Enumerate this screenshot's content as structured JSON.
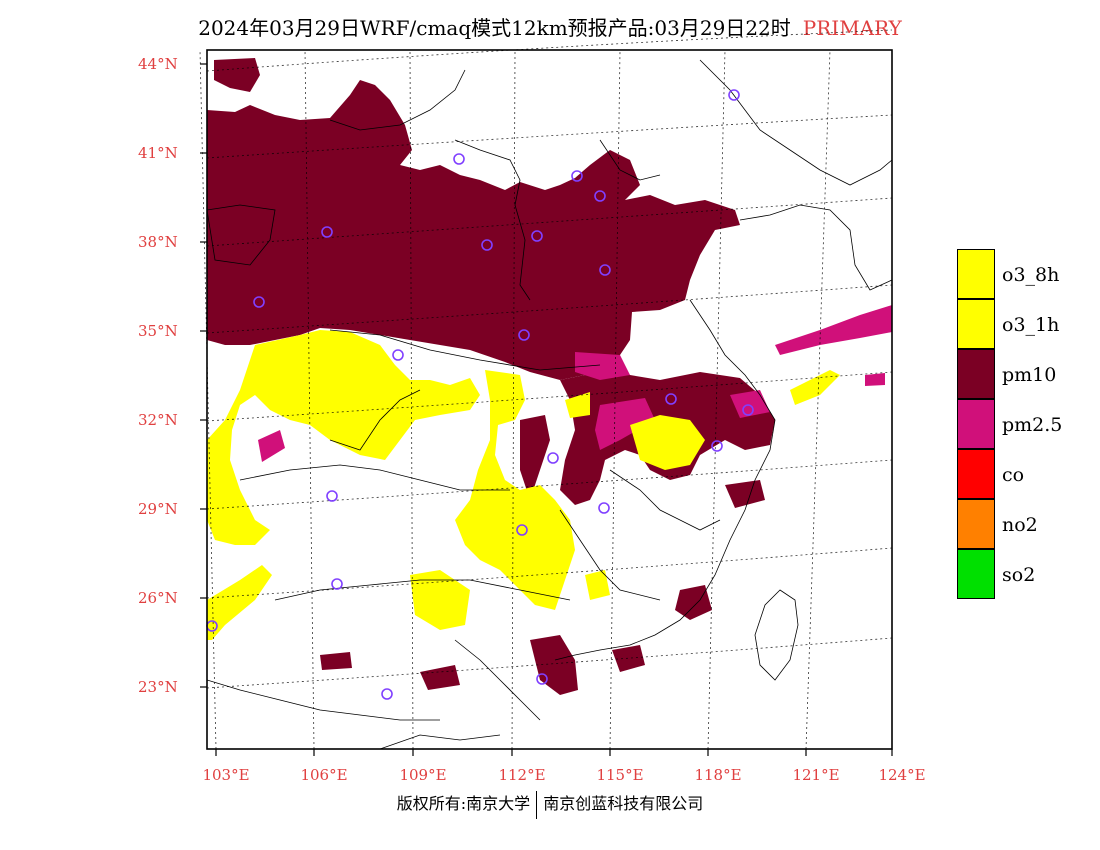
{
  "title": {
    "text": "2024年03月29日WRF/cmaq模式12km预报产品:03月29日22时",
    "tag": "PRIMARY"
  },
  "lat_labels": [
    "44°N",
    "41°N",
    "38°N",
    "35°N",
    "32°N",
    "29°N",
    "26°N",
    "23°N"
  ],
  "lon_labels": [
    "103°E",
    "106°E",
    "109°E",
    "112°E",
    "115°E",
    "118°E",
    "121°E",
    "124°E"
  ],
  "legend": [
    {
      "label": "o3_8h",
      "color": "#ffff00"
    },
    {
      "label": "o3_1h",
      "color": "#ffff00"
    },
    {
      "label": "pm10",
      "color": "#7b0024"
    },
    {
      "label": "pm2.5",
      "color": "#d0107a"
    },
    {
      "label": "co",
      "color": "#ff0000"
    },
    {
      "label": "no2",
      "color": "#ff8000"
    },
    {
      "label": "so2",
      "color": "#00e000"
    }
  ],
  "footer": {
    "left": "版权所有:南京大学",
    "right": "南京创蓝科技有限公司"
  },
  "colors": {
    "pm10": "#7b0024",
    "pm25": "#d0107a",
    "o3": "#ffff00",
    "station_marker": "#8040ff",
    "axis_label": "#e04040"
  }
}
